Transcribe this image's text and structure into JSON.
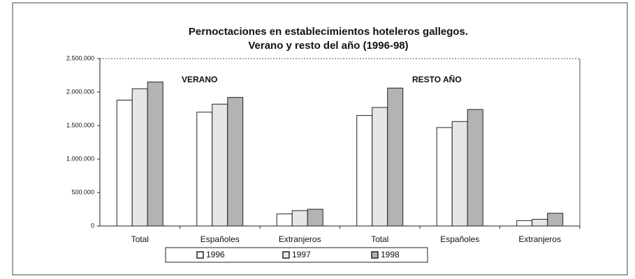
{
  "chart_data": {
    "type": "bar",
    "title": "Pernoctaciones en establecimientos hoteleros gallegos.",
    "subtitle": "Verano y resto del año (1996-98)",
    "annotations": [
      "VERANO",
      "RESTO AÑO"
    ],
    "categories": [
      "Total",
      "Españoles",
      "Extranjeros",
      "Total",
      "Españoles",
      "Extranjeros"
    ],
    "series": [
      {
        "name": "1996",
        "color": "#ffffff",
        "values": [
          1880000,
          1700000,
          180000,
          1650000,
          1470000,
          80000
        ]
      },
      {
        "name": "1997",
        "color": "#e6e6e6",
        "values": [
          2050000,
          1820000,
          230000,
          1770000,
          1560000,
          100000
        ]
      },
      {
        "name": "1998",
        "color": "#b3b3b3",
        "values": [
          2150000,
          1920000,
          250000,
          2060000,
          1740000,
          190000
        ]
      }
    ],
    "ylim": [
      0,
      2500000
    ],
    "yticks": [
      0,
      {
        "value": 500000,
        "label": "500.000"
      },
      {
        "value": 1000000,
        "label": "1.000.000"
      },
      {
        "value": 1500000,
        "label": "1.500.000"
      },
      {
        "value": 2000000,
        "label": "2.000.000"
      },
      {
        "value": 2500000,
        "label": "2.500.000"
      }
    ],
    "grid": false,
    "legend": "bottom"
  }
}
